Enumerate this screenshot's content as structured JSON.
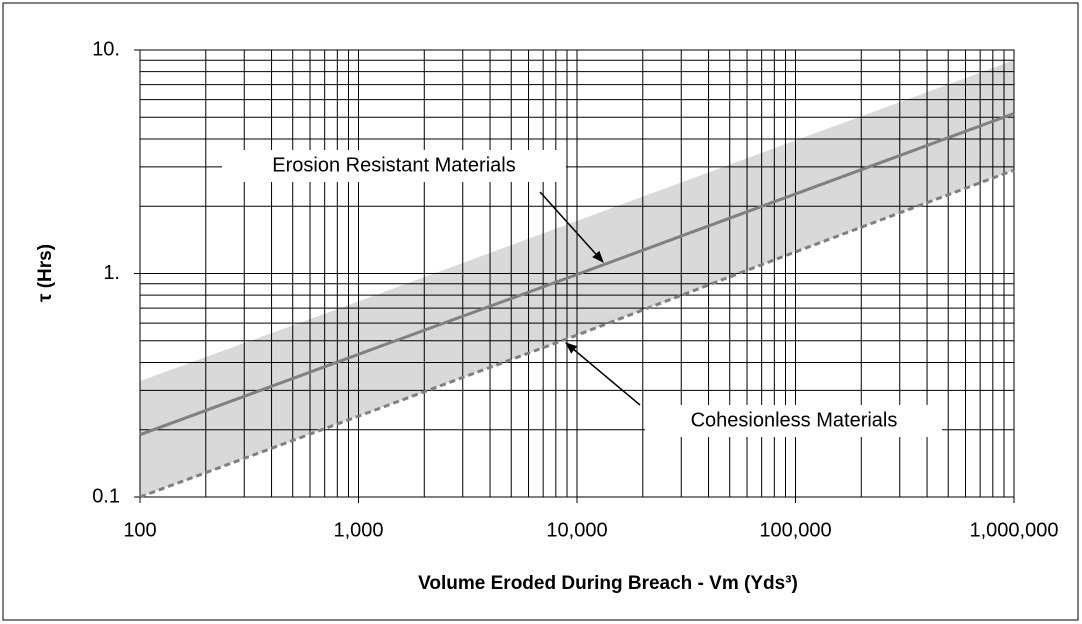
{
  "chart_data": {
    "type": "line",
    "xlabel": "Volume Eroded During Breach - Vm (Yds³)",
    "ylabel": "τ  (Hrs)",
    "xscale": "log",
    "yscale": "log",
    "grid": true,
    "xlim": [
      100,
      1000000
    ],
    "ylim": [
      0.1,
      10
    ],
    "xticks": [
      100,
      {
        "value": 1000,
        "label": "1,000"
      },
      {
        "value": 10000,
        "label": "10,000"
      },
      {
        "value": 100000,
        "label": "100,000"
      },
      {
        "value": 1000000,
        "label": "1,000,000"
      }
    ],
    "yticks": [
      0.1,
      {
        "value": 1,
        "label": "1."
      },
      {
        "value": 10,
        "label": "10."
      }
    ],
    "xminorticks": [
      200,
      300,
      400,
      500,
      600,
      700,
      800,
      900,
      2000,
      3000,
      4000,
      5000,
      6000,
      7000,
      8000,
      9000,
      20000,
      30000,
      40000,
      50000,
      60000,
      70000,
      80000,
      90000,
      200000,
      300000,
      400000,
      500000,
      600000,
      700000,
      800000,
      900000
    ],
    "yminorticks": [
      0.2,
      0.3,
      0.4,
      0.5,
      0.6,
      0.7,
      0.8,
      0.9,
      2,
      3,
      4,
      5,
      6,
      7,
      8,
      9
    ],
    "x": [
      100,
      1000,
      10000,
      100000,
      1000000
    ],
    "band": {
      "color": "#d9d9d9",
      "upper": [
        0.33,
        0.75,
        1.72,
        3.94,
        9.0
      ],
      "lower": [
        0.1,
        0.23,
        0.53,
        1.25,
        2.9
      ]
    },
    "series": [
      {
        "color": "#808080",
        "dash": false,
        "values": [
          0.19,
          0.435,
          0.99,
          2.27,
          5.2
        ]
      },
      {
        "color": "#808080",
        "dash": true,
        "values": [
          0.1,
          0.23,
          0.53,
          1.25,
          2.9
        ]
      }
    ],
    "annotations": [
      {
        "text": "Erosion Resistant Materials"
      },
      {
        "text": "Cohesionless Materials"
      }
    ]
  }
}
